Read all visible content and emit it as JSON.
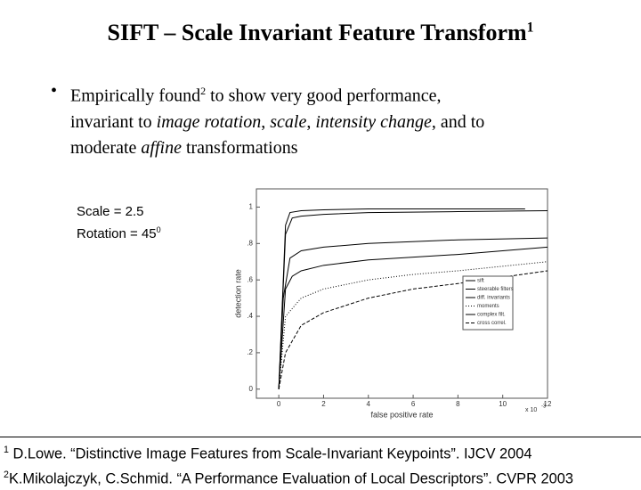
{
  "slide": {
    "title": {
      "text": "SIFT – Scale Invariant Feature Transform",
      "sup": "1"
    },
    "bullet": {
      "lines": [
        [
          "Empirically found",
          "2",
          " to show very good performance,"
        ],
        [
          "invariant to ",
          "image rotation",
          ", ",
          "scale",
          ", ",
          "intensity change",
          ", and to"
        ],
        [
          "moderate ",
          "affine",
          " transformations"
        ]
      ]
    },
    "annotation": {
      "scale": "Scale = 2.5",
      "rotation": "Rotation = 45",
      "rotation_sup": "0"
    },
    "footnotes": [
      {
        "mark": "1",
        "text": "D.Lowe. “Distinctive Image Features from Scale-Invariant Keypoints”.  IJCV 2004"
      },
      {
        "mark": "2",
        "text": "K.Mikolajczyk, C.Schmid. “A Performance Evaluation of Local Descriptors”. CVPR 2003"
      }
    ]
  },
  "chart_data": {
    "type": "line",
    "x_label": "false positive rate",
    "y_label": "detection rate",
    "x_multiplier": {
      "base": "x 10",
      "exponent": "-3"
    },
    "xlim": [
      -1,
      12
    ],
    "ylim": [
      -0.05,
      1.1
    ],
    "xticks": [
      0,
      2,
      4,
      6,
      8,
      10,
      12
    ],
    "yticks": [
      0,
      {
        "value": 0.2,
        "label": ".2"
      },
      {
        "value": 0.4,
        "label": ".4"
      },
      {
        "value": 0.6,
        "label": ".6"
      },
      {
        "value": 0.8,
        "label": ".8"
      },
      1
    ],
    "series": [
      {
        "name": "sift",
        "color": "#000000",
        "x": [
          0,
          0.3,
          0.5,
          1,
          2,
          4,
          8,
          11
        ],
        "values": [
          0,
          0.9,
          0.97,
          0.98,
          0.985,
          0.99,
          0.99,
          0.99
        ]
      },
      {
        "name": "steerable filters",
        "color": "#000000",
        "x": [
          0,
          0.3,
          0.6,
          1,
          2,
          4,
          8,
          12
        ],
        "values": [
          0,
          0.85,
          0.94,
          0.95,
          0.96,
          0.97,
          0.975,
          0.98
        ]
      },
      {
        "name": "diff. invariants",
        "color": "#000000",
        "x": [
          0,
          0.2,
          0.5,
          1,
          2,
          4,
          8,
          12
        ],
        "values": [
          0,
          0.5,
          0.72,
          0.76,
          0.78,
          0.8,
          0.82,
          0.83
        ]
      },
      {
        "name": "moments",
        "color": "#000000",
        "x": [
          0,
          0.3,
          1,
          2,
          4,
          6,
          8,
          12
        ],
        "values": [
          0,
          0.4,
          0.5,
          0.55,
          0.6,
          0.63,
          0.65,
          0.7
        ]
      },
      {
        "name": "complex filt.",
        "color": "#000000",
        "x": [
          0,
          0.3,
          0.6,
          1,
          2,
          4,
          8,
          12
        ],
        "values": [
          0,
          0.55,
          0.62,
          0.65,
          0.68,
          0.71,
          0.74,
          0.78
        ]
      },
      {
        "name": "cross correl.",
        "color": "#000000",
        "x": [
          0,
          0.3,
          1,
          2,
          4,
          6,
          8,
          12
        ],
        "values": [
          0,
          0.2,
          0.35,
          0.42,
          0.5,
          0.55,
          0.58,
          0.65
        ]
      }
    ]
  }
}
